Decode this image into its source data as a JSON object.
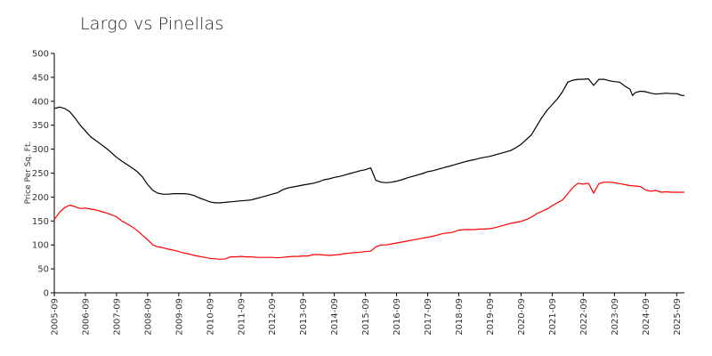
{
  "chart_data": {
    "type": "line",
    "title": "Largo vs Pinellas",
    "ylabel": "Price Per Sq. Ft.",
    "xlabel": "",
    "ylim": [
      0,
      500
    ],
    "yticks": [
      0,
      50,
      100,
      150,
      200,
      250,
      300,
      350,
      400,
      450,
      500
    ],
    "xlim": [
      "2005-09",
      "2025-12"
    ],
    "xticks": [
      "2005-09",
      "2006-09",
      "2007-09",
      "2008-09",
      "2009-09",
      "2010-09",
      "2011-09",
      "2012-09",
      "2013-09",
      "2014-09",
      "2015-09",
      "2016-09",
      "2017-09",
      "2018-09",
      "2019-09",
      "2020-09",
      "2021-09",
      "2022-09",
      "2023-09",
      "2024-09",
      "2025-09"
    ],
    "legend": "none",
    "grid": false,
    "series": [
      {
        "color": "#000000",
        "points": [
          [
            "2005-09",
            385
          ],
          [
            "2005-11",
            388
          ],
          [
            "2006-01",
            385
          ],
          [
            "2006-03",
            378
          ],
          [
            "2006-05",
            365
          ],
          [
            "2006-07",
            350
          ],
          [
            "2006-09",
            338
          ],
          [
            "2006-11",
            326
          ],
          [
            "2007-01",
            318
          ],
          [
            "2007-03",
            310
          ],
          [
            "2007-05",
            302
          ],
          [
            "2007-07",
            293
          ],
          [
            "2007-09",
            283
          ],
          [
            "2007-11",
            275
          ],
          [
            "2008-01",
            268
          ],
          [
            "2008-03",
            261
          ],
          [
            "2008-05",
            253
          ],
          [
            "2008-07",
            242
          ],
          [
            "2008-09",
            226
          ],
          [
            "2008-11",
            214
          ],
          [
            "2009-01",
            208
          ],
          [
            "2009-03",
            206
          ],
          [
            "2009-05",
            206
          ],
          [
            "2009-07",
            207
          ],
          [
            "2009-09",
            207
          ],
          [
            "2009-11",
            207
          ],
          [
            "2010-01",
            206
          ],
          [
            "2010-03",
            203
          ],
          [
            "2010-05",
            198
          ],
          [
            "2010-07",
            194
          ],
          [
            "2010-09",
            190
          ],
          [
            "2010-11",
            188
          ],
          [
            "2011-01",
            188
          ],
          [
            "2011-03",
            189
          ],
          [
            "2011-05",
            190
          ],
          [
            "2011-07",
            191
          ],
          [
            "2011-09",
            192
          ],
          [
            "2011-11",
            193
          ],
          [
            "2012-01",
            194
          ],
          [
            "2012-03",
            197
          ],
          [
            "2012-05",
            200
          ],
          [
            "2012-07",
            203
          ],
          [
            "2012-09",
            206
          ],
          [
            "2012-11",
            209
          ],
          [
            "2013-01",
            215
          ],
          [
            "2013-03",
            219
          ],
          [
            "2013-05",
            221
          ],
          [
            "2013-07",
            223
          ],
          [
            "2013-09",
            225
          ],
          [
            "2013-11",
            227
          ],
          [
            "2014-01",
            229
          ],
          [
            "2014-03",
            232
          ],
          [
            "2014-05",
            236
          ],
          [
            "2014-07",
            238
          ],
          [
            "2014-09",
            241
          ],
          [
            "2014-11",
            243
          ],
          [
            "2015-01",
            246
          ],
          [
            "2015-03",
            249
          ],
          [
            "2015-05",
            252
          ],
          [
            "2015-07",
            255
          ],
          [
            "2015-09",
            257
          ],
          [
            "2015-11",
            261
          ],
          [
            "2016-01",
            235
          ],
          [
            "2016-03",
            231
          ],
          [
            "2016-05",
            230
          ],
          [
            "2016-07",
            231
          ],
          [
            "2016-09",
            233
          ],
          [
            "2016-11",
            236
          ],
          [
            "2017-01",
            240
          ],
          [
            "2017-03",
            243
          ],
          [
            "2017-05",
            246
          ],
          [
            "2017-07",
            249
          ],
          [
            "2017-09",
            253
          ],
          [
            "2017-11",
            255
          ],
          [
            "2018-01",
            258
          ],
          [
            "2018-03",
            261
          ],
          [
            "2018-05",
            264
          ],
          [
            "2018-07",
            267
          ],
          [
            "2018-09",
            270
          ],
          [
            "2018-11",
            273
          ],
          [
            "2019-01",
            276
          ],
          [
            "2019-03",
            278
          ],
          [
            "2019-05",
            281
          ],
          [
            "2019-07",
            283
          ],
          [
            "2019-09",
            285
          ],
          [
            "2019-11",
            288
          ],
          [
            "2020-01",
            291
          ],
          [
            "2020-03",
            294
          ],
          [
            "2020-05",
            297
          ],
          [
            "2020-07",
            303
          ],
          [
            "2020-09",
            310
          ],
          [
            "2020-11",
            320
          ],
          [
            "2021-01",
            330
          ],
          [
            "2021-03",
            348
          ],
          [
            "2021-05",
            366
          ],
          [
            "2021-07",
            381
          ],
          [
            "2021-09",
            393
          ],
          [
            "2021-11",
            405
          ],
          [
            "2022-01",
            420
          ],
          [
            "2022-03",
            440
          ],
          [
            "2022-05",
            444
          ],
          [
            "2022-07",
            446
          ],
          [
            "2022-09",
            446
          ],
          [
            "2022-11",
            447
          ],
          [
            "2023-01",
            433
          ],
          [
            "2023-03",
            446
          ],
          [
            "2023-05",
            446
          ],
          [
            "2023-07",
            443
          ],
          [
            "2023-09",
            441
          ],
          [
            "2023-11",
            440
          ],
          [
            "2024-01",
            432
          ],
          [
            "2024-03",
            425
          ],
          [
            "2024-04",
            412
          ],
          [
            "2024-05",
            418
          ],
          [
            "2024-07",
            421
          ],
          [
            "2024-09",
            420
          ],
          [
            "2024-11",
            417
          ],
          [
            "2025-01",
            415
          ],
          [
            "2025-03",
            416
          ],
          [
            "2025-05",
            417
          ],
          [
            "2025-07",
            416
          ],
          [
            "2025-09",
            416
          ],
          [
            "2025-11",
            412
          ],
          [
            "2025-12",
            412
          ]
        ]
      },
      {
        "color": "#ff0000",
        "points": [
          [
            "2005-09",
            153
          ],
          [
            "2005-11",
            168
          ],
          [
            "2006-01",
            178
          ],
          [
            "2006-03",
            183
          ],
          [
            "2006-05",
            180
          ],
          [
            "2006-07",
            176
          ],
          [
            "2006-09",
            177
          ],
          [
            "2006-11",
            175
          ],
          [
            "2007-01",
            173
          ],
          [
            "2007-03",
            170
          ],
          [
            "2007-05",
            167
          ],
          [
            "2007-07",
            163
          ],
          [
            "2007-09",
            159
          ],
          [
            "2007-11",
            150
          ],
          [
            "2008-01",
            144
          ],
          [
            "2008-03",
            138
          ],
          [
            "2008-05",
            130
          ],
          [
            "2008-07",
            120
          ],
          [
            "2008-09",
            111
          ],
          [
            "2008-11",
            100
          ],
          [
            "2009-01",
            96
          ],
          [
            "2009-03",
            94
          ],
          [
            "2009-05",
            91
          ],
          [
            "2009-07",
            89
          ],
          [
            "2009-09",
            86
          ],
          [
            "2009-11",
            83
          ],
          [
            "2010-01",
            81
          ],
          [
            "2010-03",
            78
          ],
          [
            "2010-05",
            76
          ],
          [
            "2010-07",
            74
          ],
          [
            "2010-09",
            72
          ],
          [
            "2010-11",
            71
          ],
          [
            "2011-01",
            70
          ],
          [
            "2011-03",
            71
          ],
          [
            "2011-05",
            75
          ],
          [
            "2011-07",
            75
          ],
          [
            "2011-09",
            76
          ],
          [
            "2011-11",
            75
          ],
          [
            "2012-01",
            75
          ],
          [
            "2012-03",
            74
          ],
          [
            "2012-05",
            74
          ],
          [
            "2012-07",
            74
          ],
          [
            "2012-09",
            74
          ],
          [
            "2012-11",
            73
          ],
          [
            "2013-01",
            74
          ],
          [
            "2013-03",
            75
          ],
          [
            "2013-05",
            76
          ],
          [
            "2013-07",
            76
          ],
          [
            "2013-09",
            77
          ],
          [
            "2013-11",
            77
          ],
          [
            "2014-01",
            80
          ],
          [
            "2014-03",
            80
          ],
          [
            "2014-05",
            79
          ],
          [
            "2014-07",
            78
          ],
          [
            "2014-09",
            79
          ],
          [
            "2014-11",
            80
          ],
          [
            "2015-01",
            82
          ],
          [
            "2015-03",
            83
          ],
          [
            "2015-05",
            84
          ],
          [
            "2015-07",
            85
          ],
          [
            "2015-09",
            86
          ],
          [
            "2015-11",
            87
          ],
          [
            "2016-01",
            96
          ],
          [
            "2016-03",
            100
          ],
          [
            "2016-05",
            100
          ],
          [
            "2016-07",
            102
          ],
          [
            "2016-09",
            104
          ],
          [
            "2016-11",
            106
          ],
          [
            "2017-01",
            108
          ],
          [
            "2017-03",
            110
          ],
          [
            "2017-05",
            112
          ],
          [
            "2017-07",
            114
          ],
          [
            "2017-09",
            116
          ],
          [
            "2017-11",
            118
          ],
          [
            "2018-01",
            121
          ],
          [
            "2018-03",
            124
          ],
          [
            "2018-05",
            125
          ],
          [
            "2018-07",
            127
          ],
          [
            "2018-09",
            131
          ],
          [
            "2018-11",
            132
          ],
          [
            "2019-01",
            132
          ],
          [
            "2019-03",
            132
          ],
          [
            "2019-05",
            133
          ],
          [
            "2019-07",
            133
          ],
          [
            "2019-09",
            134
          ],
          [
            "2019-11",
            136
          ],
          [
            "2020-01",
            139
          ],
          [
            "2020-03",
            142
          ],
          [
            "2020-05",
            145
          ],
          [
            "2020-07",
            147
          ],
          [
            "2020-09",
            149
          ],
          [
            "2020-11",
            153
          ],
          [
            "2021-01",
            158
          ],
          [
            "2021-03",
            165
          ],
          [
            "2021-05",
            170
          ],
          [
            "2021-07",
            175
          ],
          [
            "2021-09",
            182
          ],
          [
            "2021-11",
            188
          ],
          [
            "2022-01",
            194
          ],
          [
            "2022-03",
            207
          ],
          [
            "2022-05",
            220
          ],
          [
            "2022-07",
            229
          ],
          [
            "2022-09",
            227
          ],
          [
            "2022-11",
            229
          ],
          [
            "2023-01",
            208
          ],
          [
            "2023-03",
            228
          ],
          [
            "2023-05",
            231
          ],
          [
            "2023-07",
            231
          ],
          [
            "2023-09",
            230
          ],
          [
            "2023-11",
            228
          ],
          [
            "2024-01",
            226
          ],
          [
            "2024-03",
            224
          ],
          [
            "2024-05",
            223
          ],
          [
            "2024-07",
            222
          ],
          [
            "2024-09",
            215
          ],
          [
            "2024-11",
            212
          ],
          [
            "2025-01",
            214
          ],
          [
            "2025-03",
            210
          ],
          [
            "2025-05",
            211
          ],
          [
            "2025-07",
            210
          ],
          [
            "2025-09",
            210
          ],
          [
            "2025-11",
            210
          ],
          [
            "2025-12",
            210
          ]
        ]
      }
    ]
  }
}
